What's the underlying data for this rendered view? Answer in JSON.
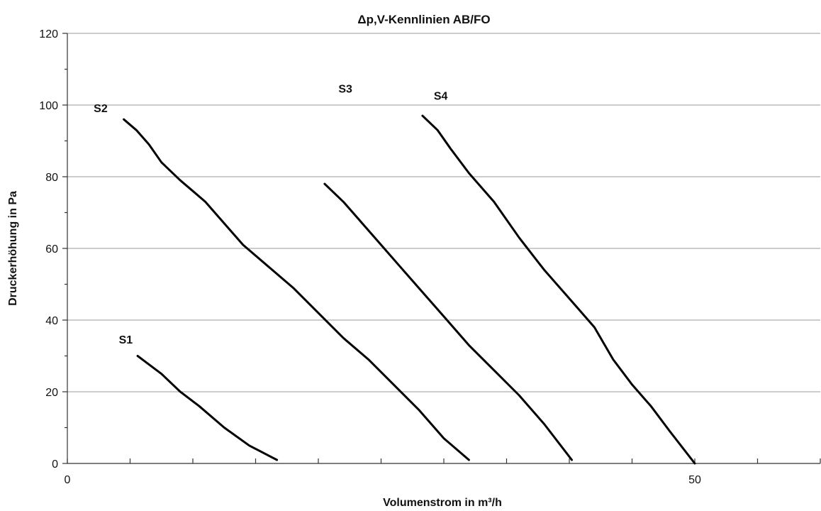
{
  "chart_data": {
    "type": "line",
    "title": "Δp,V-Kennlinien AB/FO",
    "xlabel": "Volumenstrom in m³/h",
    "ylabel": "Druckerhöhung in Pa",
    "xlim": [
      0,
      60
    ],
    "ylim": [
      0,
      120
    ],
    "x_major_ticks": [
      0,
      5,
      10,
      15,
      20,
      25,
      30,
      35,
      40,
      45,
      50,
      55,
      60
    ],
    "x_tick_labels": [
      {
        "value": 0,
        "label": "0"
      },
      {
        "value": 50,
        "label": "50"
      }
    ],
    "y_ticks": [
      0,
      20,
      40,
      60,
      80,
      100,
      120
    ],
    "y_tick_labels": [
      "0",
      "20",
      "40",
      "60",
      "80",
      "100",
      "120"
    ],
    "y_minor_ticks": [
      10,
      30,
      50,
      70,
      90,
      110
    ],
    "grid": "horizontal",
    "legend": "none",
    "series": [
      {
        "name": "S1",
        "x": [
          5.6,
          7.5,
          9.0,
          10.5,
          12.5,
          14.5,
          16.7
        ],
        "y": [
          30,
          25,
          20,
          16,
          10,
          5,
          1
        ],
        "label_at": {
          "x": 4.1,
          "y": 33.5
        }
      },
      {
        "name": "S2",
        "x": [
          4.5,
          5.5,
          6.5,
          7.5,
          9.0,
          10.0,
          11.0,
          12.0,
          14.0,
          16.0,
          18.0,
          20.0,
          22.0,
          24.0,
          26.0,
          28.0,
          30.0,
          32.0
        ],
        "y": [
          96,
          93,
          89,
          84,
          79,
          76,
          73,
          69,
          61,
          55,
          49,
          42,
          35,
          29,
          22,
          15,
          7,
          1
        ],
        "label_at": {
          "x": 2.1,
          "y": 98
        }
      },
      {
        "name": "S3",
        "x": [
          20.5,
          22.0,
          23.5,
          25.0,
          26.5,
          28.0,
          30.0,
          32.0,
          34.0,
          36.0,
          38.0,
          40.2
        ],
        "y": [
          78,
          73,
          67,
          61,
          55,
          49,
          41,
          33,
          26,
          19,
          11,
          1
        ],
        "label_at": {
          "x": 21.6,
          "y": 103.5
        }
      },
      {
        "name": "S4",
        "x": [
          28.3,
          29.5,
          30.5,
          32.0,
          34.0,
          36.0,
          38.0,
          40.5,
          42.0,
          43.5,
          45.0,
          46.5,
          48.0,
          50.0
        ],
        "y": [
          97,
          93,
          88,
          81,
          73,
          63,
          54,
          44,
          38,
          29,
          22,
          16,
          9,
          0
        ],
        "label_at": {
          "x": 29.2,
          "y": 101.5
        }
      }
    ]
  }
}
